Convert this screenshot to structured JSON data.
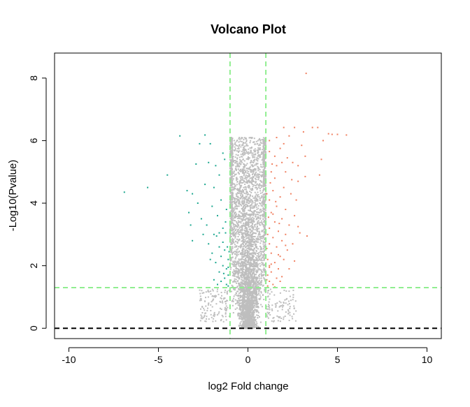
{
  "chart_data": {
    "type": "scatter",
    "title": "Volcano Plot",
    "xlabel": "log2 Fold change",
    "ylabel": "-Log10(Pvalue)",
    "xlim": [
      -10.8,
      10.8
    ],
    "ylim": [
      -0.33,
      8.8
    ],
    "xticks": [
      -10,
      -5,
      0,
      5,
      10
    ],
    "yticks": [
      0,
      2,
      4,
      6,
      8
    ],
    "colors": {
      "up": "#F08060",
      "down": "#1BA78F",
      "ns": "#BEBEBE",
      "threshold": "#90EE90",
      "baseline": "#000000"
    },
    "thresholds": {
      "logfc": [
        -1,
        1
      ],
      "neg_log10_p": 1.3,
      "baseline": 0
    },
    "series": [
      {
        "color_key": "up",
        "points": [
          [
            3.25,
            8.15
          ],
          [
            2.0,
            6.42
          ],
          [
            2.6,
            6.42
          ],
          [
            3.6,
            6.42
          ],
          [
            3.9,
            6.42
          ],
          [
            4.5,
            6.22
          ],
          [
            4.7,
            6.2
          ],
          [
            5.0,
            6.2
          ],
          [
            5.5,
            6.18
          ],
          [
            4.2,
            6.0
          ],
          [
            3.1,
            6.28
          ],
          [
            2.3,
            6.15
          ],
          [
            1.6,
            6.1
          ],
          [
            1.2,
            6.0
          ],
          [
            2.0,
            5.9
          ],
          [
            1.8,
            5.75
          ],
          [
            1.2,
            5.65
          ],
          [
            1.5,
            5.5
          ],
          [
            2.2,
            5.45
          ],
          [
            3.2,
            5.5
          ],
          [
            4.1,
            5.4
          ],
          [
            2.5,
            5.3
          ],
          [
            1.9,
            5.3
          ],
          [
            1.6,
            5.2
          ],
          [
            2.8,
            5.2
          ],
          [
            1.3,
            5.0
          ],
          [
            2.1,
            5.0
          ],
          [
            1.5,
            4.8
          ],
          [
            3.2,
            4.85
          ],
          [
            4.0,
            4.9
          ],
          [
            2.8,
            4.7
          ],
          [
            2.0,
            4.5
          ],
          [
            1.4,
            4.4
          ],
          [
            1.8,
            4.2
          ],
          [
            2.4,
            4.3
          ],
          [
            2.7,
            4.1
          ],
          [
            1.2,
            4.1
          ],
          [
            1.6,
            3.9
          ],
          [
            2.1,
            3.8
          ],
          [
            1.3,
            3.7
          ],
          [
            2.6,
            3.6
          ],
          [
            1.9,
            3.5
          ],
          [
            1.5,
            3.4
          ],
          [
            2.3,
            3.3
          ],
          [
            1.2,
            3.2
          ],
          [
            2.8,
            3.25
          ],
          [
            1.7,
            3.1
          ],
          [
            2.1,
            3.0
          ],
          [
            1.4,
            2.9
          ],
          [
            1.9,
            2.8
          ],
          [
            1.2,
            2.7
          ],
          [
            2.5,
            2.7
          ],
          [
            1.6,
            2.6
          ],
          [
            2.2,
            2.5
          ],
          [
            1.3,
            2.4
          ],
          [
            1.8,
            2.3
          ],
          [
            1.1,
            2.2
          ],
          [
            2.0,
            2.2
          ],
          [
            1.5,
            2.1
          ],
          [
            1.2,
            2.0
          ],
          [
            1.7,
            1.9
          ],
          [
            1.3,
            1.8
          ],
          [
            2.3,
            1.9
          ],
          [
            1.1,
            1.7
          ],
          [
            1.6,
            1.6
          ],
          [
            1.2,
            1.5
          ],
          [
            1.4,
            1.4
          ],
          [
            1.8,
            1.5
          ],
          [
            1.1,
            1.35
          ],
          [
            1.5,
            1.32
          ],
          [
            2.9,
            3.05
          ],
          [
            3.3,
            2.95
          ],
          [
            2.6,
            2.15
          ],
          [
            1.15,
            3.55
          ],
          [
            1.25,
            4.65
          ],
          [
            1.35,
            5.25
          ],
          [
            1.05,
            4.3
          ],
          [
            1.1,
            3.0
          ],
          [
            1.05,
            2.55
          ],
          [
            1.2,
            1.95
          ],
          [
            1.4,
            3.65
          ],
          [
            1.55,
            4.05
          ],
          [
            1.75,
            3.35
          ],
          [
            2.45,
            4.75
          ],
          [
            3.0,
            5.85
          ],
          [
            1.7,
            2.35
          ],
          [
            2.1,
            2.65
          ],
          [
            1.3,
            2.05
          ],
          [
            1.9,
            1.65
          ],
          [
            1.05,
            1.55
          ]
        ]
      },
      {
        "color_key": "down",
        "points": [
          [
            -3.8,
            6.15
          ],
          [
            -2.4,
            6.18
          ],
          [
            -6.9,
            4.35
          ],
          [
            -5.6,
            4.5
          ],
          [
            -4.5,
            4.9
          ],
          [
            -2.1,
            5.9
          ],
          [
            -2.7,
            5.9
          ],
          [
            -2.9,
            5.25
          ],
          [
            -2.2,
            5.3
          ],
          [
            -1.8,
            5.2
          ],
          [
            -1.4,
            5.6
          ],
          [
            -1.3,
            5.4
          ],
          [
            -1.6,
            4.9
          ],
          [
            -2.4,
            4.6
          ],
          [
            -1.9,
            4.5
          ],
          [
            -3.4,
            4.4
          ],
          [
            -3.1,
            4.3
          ],
          [
            -2.8,
            4.0
          ],
          [
            -3.3,
            3.7
          ],
          [
            -2.6,
            3.5
          ],
          [
            -3.2,
            3.3
          ],
          [
            -1.5,
            4.1
          ],
          [
            -2.0,
            3.9
          ],
          [
            -1.2,
            3.8
          ],
          [
            -1.7,
            3.6
          ],
          [
            -2.3,
            3.3
          ],
          [
            -1.4,
            3.2
          ],
          [
            -1.9,
            3.0
          ],
          [
            -3.1,
            2.8
          ],
          [
            -2.2,
            2.7
          ],
          [
            -1.6,
            2.6
          ],
          [
            -1.3,
            2.5
          ],
          [
            -2.0,
            2.4
          ],
          [
            -1.5,
            2.3
          ],
          [
            -1.1,
            2.2
          ],
          [
            -1.8,
            2.1
          ],
          [
            -1.4,
            2.0
          ],
          [
            -1.2,
            1.9
          ],
          [
            -1.6,
            1.8
          ],
          [
            -1.1,
            1.7
          ],
          [
            -1.3,
            1.6
          ],
          [
            -1.5,
            1.5
          ],
          [
            -1.2,
            1.4
          ],
          [
            -1.7,
            1.4
          ],
          [
            -1.1,
            1.35
          ],
          [
            -2.5,
            3.0
          ],
          [
            -2.1,
            2.2
          ],
          [
            -1.4,
            2.75
          ],
          [
            -1.25,
            3.05
          ],
          [
            -1.75,
            2.95
          ],
          [
            -1.05,
            2.45
          ],
          [
            -1.35,
            1.75
          ],
          [
            -1.15,
            2.6
          ],
          [
            -1.9,
            1.55
          ],
          [
            -1.25,
            3.4
          ],
          [
            -1.6,
            3.05
          ],
          [
            -1.1,
            1.95
          ]
        ]
      }
    ]
  }
}
